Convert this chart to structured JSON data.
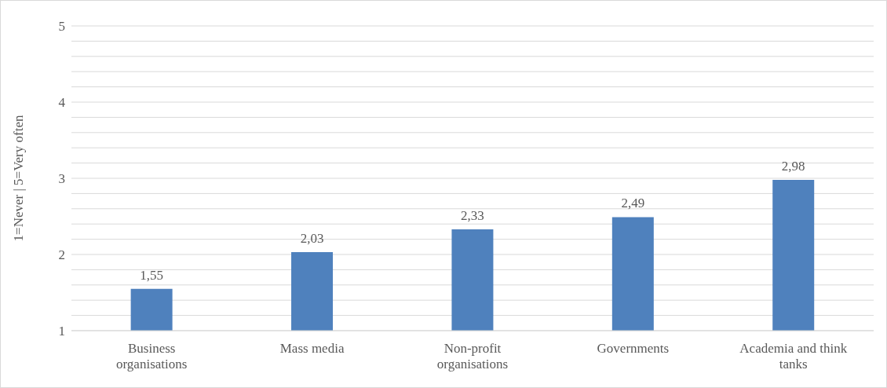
{
  "chart_data": {
    "type": "bar",
    "ylabel": "1=Never | 5=Very often",
    "categories": [
      "Business organisations",
      "Mass media",
      "Non-profit organisations",
      "Governments",
      "Academia and think tanks"
    ],
    "values": [
      1.55,
      2.03,
      2.33,
      2.49,
      2.98
    ],
    "value_labels": [
      "1,55",
      "2,03",
      "2,33",
      "2,49",
      "2,98"
    ],
    "color": "#4f81bd",
    "ylim": [
      1,
      5
    ],
    "yticks": [
      1,
      {
        "value": 1.2,
        "label": null
      },
      {
        "value": 1.4,
        "label": null
      },
      {
        "value": 1.6,
        "label": null
      },
      {
        "value": 1.8,
        "label": null
      },
      2,
      {
        "value": 2.2,
        "label": null
      },
      {
        "value": 2.4,
        "label": null
      },
      {
        "value": 2.6,
        "label": null
      },
      {
        "value": 2.8,
        "label": null
      },
      3,
      {
        "value": 3.2,
        "label": null
      },
      {
        "value": 3.4,
        "label": null
      },
      {
        "value": 3.6,
        "label": null
      },
      {
        "value": 3.8,
        "label": null
      },
      4,
      {
        "value": 4.2,
        "label": null
      },
      {
        "value": 4.4,
        "label": null
      },
      {
        "value": 4.6,
        "label": null
      },
      {
        "value": 4.8,
        "label": null
      },
      5
    ],
    "grid": "y",
    "legend": false
  }
}
